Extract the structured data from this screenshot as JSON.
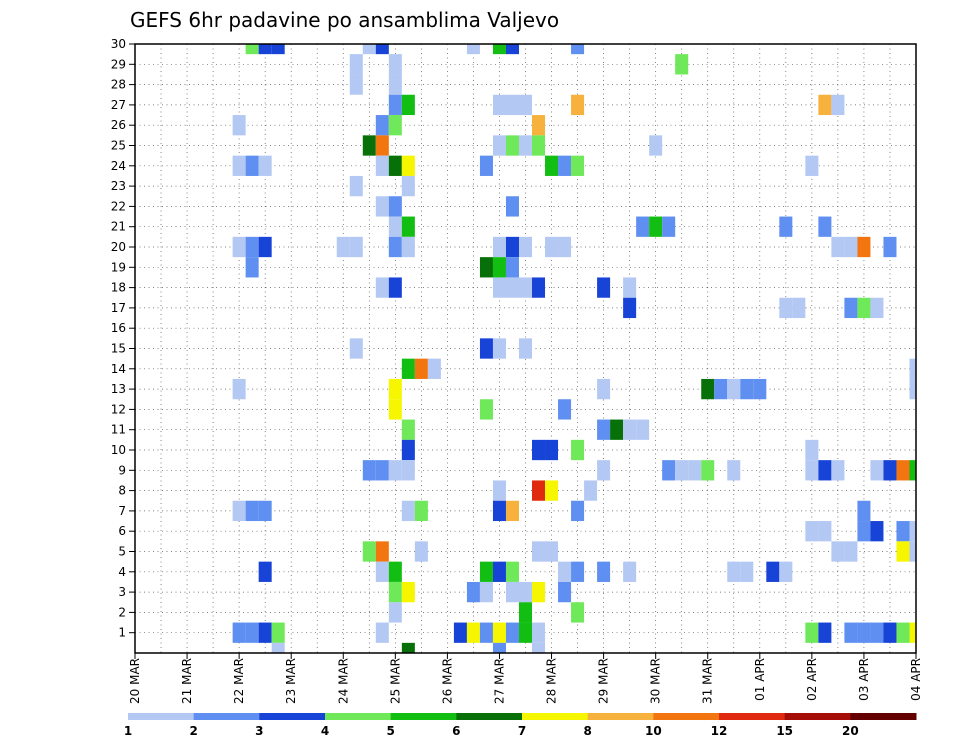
{
  "chart_data": {
    "type": "heatmap",
    "title": "GEFS 6hr padavine po ansamblima Valjevo",
    "xlabel": "",
    "ylabel": "",
    "x_tick_labels": [
      "20 MAR",
      "21 MAR",
      "22 MAR",
      "23 MAR",
      "24 MAR",
      "25 MAR",
      "26 MAR",
      "27 MAR",
      "28 MAR",
      "29 MAR",
      "30 MAR",
      "31 MAR",
      "01 APR",
      "02 APR",
      "03 APR",
      "04 APR"
    ],
    "y_ticks": [
      1,
      2,
      3,
      4,
      5,
      6,
      7,
      8,
      9,
      10,
      11,
      12,
      13,
      14,
      15,
      16,
      17,
      18,
      19,
      20,
      21,
      22,
      23,
      24,
      25,
      26,
      27,
      28,
      29,
      30
    ],
    "x_range_steps": [
      0,
      60
    ],
    "y_range": [
      0,
      30
    ],
    "time_step_hours": 6,
    "grid": "dotted",
    "colorbar": {
      "position": "bottom",
      "labels": [
        "1",
        "2",
        "3",
        "4",
        "5",
        "6",
        "7",
        "8",
        "10",
        "12",
        "15",
        "20"
      ],
      "colors": [
        "#b4c8f4",
        "#5f8ff0",
        "#1843d7",
        "#6fe85a",
        "#12be12",
        "#087008",
        "#f6f600",
        "#f6b23c",
        "#f27510",
        "#e02a10",
        "#a50d08",
        "#640000"
      ]
    },
    "cells_note": "each cell: [time step index from 20 MAR 00Z (6 h steps), ensemble member, color index into colorbar.colors]",
    "cells": [
      [
        9,
        30,
        3
      ],
      [
        10,
        30,
        2
      ],
      [
        11,
        30,
        2
      ],
      [
        18,
        30,
        0
      ],
      [
        19,
        30,
        2
      ],
      [
        26,
        30,
        0
      ],
      [
        28,
        30,
        4
      ],
      [
        29,
        30,
        2
      ],
      [
        34,
        30,
        1
      ],
      [
        17,
        29,
        0
      ],
      [
        20,
        29,
        0
      ],
      [
        42,
        29,
        3
      ],
      [
        17,
        28,
        0
      ],
      [
        20,
        28,
        0
      ],
      [
        20,
        27,
        1
      ],
      [
        21,
        27,
        4
      ],
      [
        28,
        27,
        0
      ],
      [
        29,
        27,
        0
      ],
      [
        30,
        27,
        0
      ],
      [
        34,
        27,
        7
      ],
      [
        53,
        27,
        7
      ],
      [
        54,
        27,
        0
      ],
      [
        8,
        26,
        0
      ],
      [
        19,
        26,
        1
      ],
      [
        20,
        26,
        3
      ],
      [
        31,
        26,
        7
      ],
      [
        18,
        25,
        5
      ],
      [
        19,
        25,
        8
      ],
      [
        28,
        25,
        0
      ],
      [
        29,
        25,
        3
      ],
      [
        30,
        25,
        0
      ],
      [
        31,
        25,
        3
      ],
      [
        40,
        25,
        0
      ],
      [
        8,
        24,
        0
      ],
      [
        9,
        24,
        1
      ],
      [
        10,
        24,
        0
      ],
      [
        19,
        24,
        0
      ],
      [
        20,
        24,
        5
      ],
      [
        21,
        24,
        6
      ],
      [
        27,
        24,
        1
      ],
      [
        32,
        24,
        4
      ],
      [
        33,
        24,
        1
      ],
      [
        34,
        24,
        3
      ],
      [
        52,
        24,
        0
      ],
      [
        17,
        23,
        0
      ],
      [
        21,
        23,
        0
      ],
      [
        19,
        22,
        0
      ],
      [
        20,
        22,
        1
      ],
      [
        29,
        22,
        1
      ],
      [
        20,
        21,
        0
      ],
      [
        21,
        21,
        4
      ],
      [
        39,
        21,
        1
      ],
      [
        40,
        21,
        4
      ],
      [
        41,
        21,
        1
      ],
      [
        50,
        21,
        1
      ],
      [
        53,
        21,
        1
      ],
      [
        8,
        20,
        0
      ],
      [
        9,
        20,
        1
      ],
      [
        10,
        20,
        2
      ],
      [
        16,
        20,
        0
      ],
      [
        17,
        20,
        0
      ],
      [
        20,
        20,
        1
      ],
      [
        21,
        20,
        0
      ],
      [
        28,
        20,
        0
      ],
      [
        29,
        20,
        2
      ],
      [
        30,
        20,
        0
      ],
      [
        32,
        20,
        0
      ],
      [
        33,
        20,
        0
      ],
      [
        54,
        20,
        0
      ],
      [
        55,
        20,
        0
      ],
      [
        56,
        20,
        8
      ],
      [
        58,
        20,
        1
      ],
      [
        9,
        19,
        1
      ],
      [
        27,
        19,
        5
      ],
      [
        28,
        19,
        4
      ],
      [
        29,
        19,
        1
      ],
      [
        19,
        18,
        0
      ],
      [
        20,
        18,
        2
      ],
      [
        28,
        18,
        0
      ],
      [
        29,
        18,
        0
      ],
      [
        30,
        18,
        0
      ],
      [
        31,
        18,
        2
      ],
      [
        36,
        18,
        2
      ],
      [
        38,
        18,
        0
      ],
      [
        38,
        17,
        2
      ],
      [
        50,
        17,
        0
      ],
      [
        51,
        17,
        0
      ],
      [
        55,
        17,
        1
      ],
      [
        56,
        17,
        3
      ],
      [
        57,
        17,
        0
      ],
      [
        17,
        15,
        0
      ],
      [
        27,
        15,
        2
      ],
      [
        28,
        15,
        0
      ],
      [
        30,
        15,
        0
      ],
      [
        21,
        14,
        4
      ],
      [
        22,
        14,
        8
      ],
      [
        23,
        14,
        0
      ],
      [
        60,
        14,
        0
      ],
      [
        8,
        13,
        0
      ],
      [
        20,
        13,
        6
      ],
      [
        36,
        13,
        0
      ],
      [
        44,
        13,
        5
      ],
      [
        45,
        13,
        1
      ],
      [
        46,
        13,
        0
      ],
      [
        47,
        13,
        1
      ],
      [
        48,
        13,
        1
      ],
      [
        60,
        13,
        0
      ],
      [
        20,
        12,
        6
      ],
      [
        27,
        12,
        3
      ],
      [
        33,
        12,
        1
      ],
      [
        21,
        11,
        3
      ],
      [
        36,
        11,
        1
      ],
      [
        37,
        11,
        5
      ],
      [
        38,
        11,
        0
      ],
      [
        39,
        11,
        0
      ],
      [
        21,
        10,
        2
      ],
      [
        31,
        10,
        2
      ],
      [
        32,
        10,
        2
      ],
      [
        34,
        10,
        3
      ],
      [
        52,
        10,
        0
      ],
      [
        18,
        9,
        1
      ],
      [
        19,
        9,
        1
      ],
      [
        20,
        9,
        0
      ],
      [
        21,
        9,
        0
      ],
      [
        36,
        9,
        0
      ],
      [
        41,
        9,
        1
      ],
      [
        42,
        9,
        0
      ],
      [
        43,
        9,
        0
      ],
      [
        44,
        9,
        3
      ],
      [
        46,
        9,
        0
      ],
      [
        52,
        9,
        0
      ],
      [
        53,
        9,
        2
      ],
      [
        54,
        9,
        0
      ],
      [
        57,
        9,
        0
      ],
      [
        58,
        9,
        2
      ],
      [
        59,
        9,
        8
      ],
      [
        60,
        9,
        4
      ],
      [
        28,
        8,
        0
      ],
      [
        31,
        8,
        9
      ],
      [
        32,
        8,
        6
      ],
      [
        35,
        8,
        0
      ],
      [
        8,
        7,
        0
      ],
      [
        9,
        7,
        1
      ],
      [
        10,
        7,
        1
      ],
      [
        21,
        7,
        0
      ],
      [
        22,
        7,
        3
      ],
      [
        28,
        7,
        2
      ],
      [
        29,
        7,
        7
      ],
      [
        34,
        7,
        1
      ],
      [
        56,
        7,
        1
      ],
      [
        52,
        6,
        0
      ],
      [
        53,
        6,
        0
      ],
      [
        56,
        6,
        1
      ],
      [
        57,
        6,
        2
      ],
      [
        59,
        6,
        1
      ],
      [
        60,
        6,
        0
      ],
      [
        18,
        5,
        3
      ],
      [
        19,
        5,
        8
      ],
      [
        22,
        5,
        0
      ],
      [
        31,
        5,
        0
      ],
      [
        32,
        5,
        0
      ],
      [
        54,
        5,
        0
      ],
      [
        55,
        5,
        0
      ],
      [
        59,
        5,
        6
      ],
      [
        60,
        5,
        0
      ],
      [
        10,
        4,
        2
      ],
      [
        19,
        4,
        0
      ],
      [
        20,
        4,
        4
      ],
      [
        27,
        4,
        4
      ],
      [
        28,
        4,
        2
      ],
      [
        29,
        4,
        3
      ],
      [
        33,
        4,
        0
      ],
      [
        34,
        4,
        1
      ],
      [
        36,
        4,
        1
      ],
      [
        38,
        4,
        0
      ],
      [
        46,
        4,
        0
      ],
      [
        47,
        4,
        0
      ],
      [
        49,
        4,
        2
      ],
      [
        50,
        4,
        0
      ],
      [
        20,
        3,
        3
      ],
      [
        21,
        3,
        6
      ],
      [
        26,
        3,
        1
      ],
      [
        27,
        3,
        0
      ],
      [
        29,
        3,
        0
      ],
      [
        30,
        3,
        0
      ],
      [
        31,
        3,
        6
      ],
      [
        33,
        3,
        1
      ],
      [
        20,
        2,
        0
      ],
      [
        30,
        2,
        4
      ],
      [
        34,
        2,
        3
      ],
      [
        8,
        1,
        1
      ],
      [
        9,
        1,
        1
      ],
      [
        10,
        1,
        2
      ],
      [
        11,
        1,
        3
      ],
      [
        19,
        1,
        0
      ],
      [
        25,
        1,
        2
      ],
      [
        26,
        1,
        6
      ],
      [
        27,
        1,
        1
      ],
      [
        28,
        1,
        6
      ],
      [
        29,
        1,
        1
      ],
      [
        30,
        1,
        4
      ],
      [
        31,
        1,
        0
      ],
      [
        52,
        1,
        3
      ],
      [
        53,
        1,
        2
      ],
      [
        55,
        1,
        1
      ],
      [
        56,
        1,
        1
      ],
      [
        57,
        1,
        1
      ],
      [
        58,
        1,
        2
      ],
      [
        59,
        1,
        3
      ],
      [
        60,
        1,
        6
      ],
      [
        11,
        0,
        0
      ],
      [
        21,
        0,
        5
      ],
      [
        28,
        0,
        1
      ],
      [
        31,
        0,
        0
      ]
    ]
  }
}
